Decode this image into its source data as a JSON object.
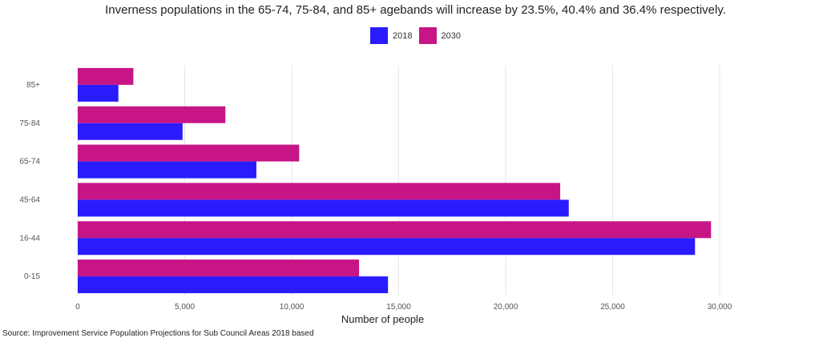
{
  "chart_data": {
    "type": "bar",
    "orientation": "horizontal",
    "title": "Inverness populations in the  65-74, 75-84, and 85+ agebands will increase by 23.5%, 40.4% and 36.4% respectively.",
    "xlabel": "Number of people",
    "ylabel": "",
    "categories": [
      "0-15",
      "16-44",
      "45-64",
      "65-74",
      "75-84",
      "85+"
    ],
    "series": [
      {
        "name": "2018",
        "color": "#2a1bff",
        "values": [
          14500,
          28850,
          22950,
          8350,
          4900,
          1900
        ]
      },
      {
        "name": "2030",
        "color": "#c71585",
        "values": [
          13150,
          29600,
          22550,
          10350,
          6900,
          2600
        ]
      }
    ],
    "xlim": [
      0,
      30000
    ],
    "xticks": [
      0,
      5000,
      10000,
      15000,
      20000,
      25000,
      30000
    ],
    "xtick_labels": [
      "0",
      "5,000",
      "10,000",
      "15,000",
      "20,000",
      "25,000",
      "30,000"
    ],
    "grid": "vertical",
    "legend_position": "top-center"
  },
  "source_note": "Source: Improvement Service Population Projections for Sub Council Areas 2018 based"
}
